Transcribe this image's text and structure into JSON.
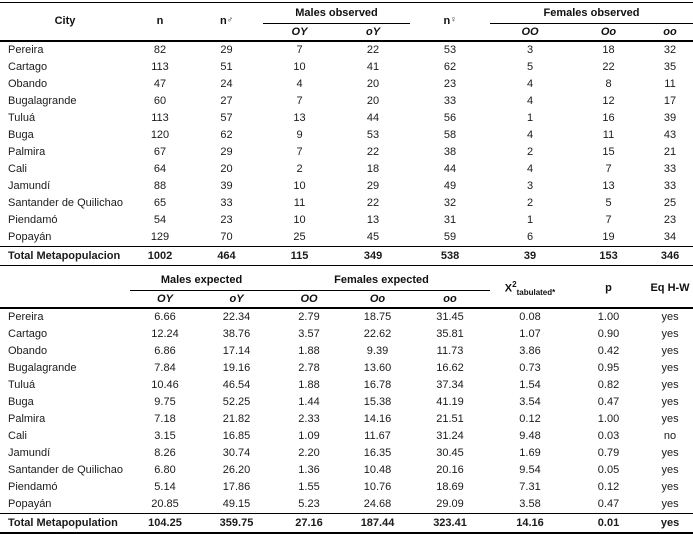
{
  "table1": {
    "headers": {
      "city": "City",
      "n": "n",
      "male_symbol": "♂",
      "female_symbol": "♀",
      "males_observed": "Males observed",
      "females_observed": "Females observed",
      "male_genotypes": [
        "OY",
        "oY"
      ],
      "female_genotypes": [
        "OO",
        "Oo",
        "oo"
      ]
    },
    "rows": [
      {
        "city": "Pereira",
        "values": [
          "82",
          "29",
          "7",
          "22",
          "53",
          "3",
          "18",
          "32"
        ]
      },
      {
        "city": "Cartago",
        "values": [
          "113",
          "51",
          "10",
          "41",
          "62",
          "5",
          "22",
          "35"
        ]
      },
      {
        "city": "Obando",
        "values": [
          "47",
          "24",
          "4",
          "20",
          "23",
          "4",
          "8",
          "11"
        ]
      },
      {
        "city": "Bugalagrande",
        "values": [
          "60",
          "27",
          "7",
          "20",
          "33",
          "4",
          "12",
          "17"
        ]
      },
      {
        "city": "Tuluá",
        "values": [
          "113",
          "57",
          "13",
          "44",
          "56",
          "1",
          "16",
          "39"
        ]
      },
      {
        "city": "Buga",
        "values": [
          "120",
          "62",
          "9",
          "53",
          "58",
          "4",
          "11",
          "43"
        ]
      },
      {
        "city": "Palmira",
        "values": [
          "67",
          "29",
          "7",
          "22",
          "38",
          "2",
          "15",
          "21"
        ]
      },
      {
        "city": "Cali",
        "values": [
          "64",
          "20",
          "2",
          "18",
          "44",
          "4",
          "7",
          "33"
        ]
      },
      {
        "city": "Jamundí",
        "values": [
          "88",
          "39",
          "10",
          "29",
          "49",
          "3",
          "13",
          "33"
        ]
      },
      {
        "city": "Santander de Quilichao",
        "values": [
          "65",
          "33",
          "11",
          "22",
          "32",
          "2",
          "5",
          "25"
        ]
      },
      {
        "city": "Piendamó",
        "values": [
          "54",
          "23",
          "10",
          "13",
          "31",
          "1",
          "7",
          "23"
        ]
      },
      {
        "city": "Popayán",
        "values": [
          "129",
          "70",
          "25",
          "45",
          "59",
          "6",
          "19",
          "34"
        ]
      }
    ],
    "total": {
      "city": "Total Metapopulacion",
      "values": [
        "1002",
        "464",
        "115",
        "349",
        "538",
        "39",
        "153",
        "346"
      ]
    }
  },
  "table2": {
    "headers": {
      "city": "",
      "males_expected": "Males expected",
      "females_expected": "Females expected",
      "male_genotypes": [
        "OY",
        "oY"
      ],
      "female_genotypes": [
        "OO",
        "Oo",
        "oo"
      ],
      "chi_base": "X",
      "chi_sup": "2",
      "chi_sub": "tabulated*",
      "p": "p",
      "eq_hw": "Eq H-W"
    },
    "rows": [
      {
        "city": "Pereira",
        "values": [
          "6.66",
          "22.34",
          "2.79",
          "18.75",
          "31.45",
          "0.08",
          "1.00",
          "yes"
        ]
      },
      {
        "city": "Cartago",
        "values": [
          "12.24",
          "38.76",
          "3.57",
          "22.62",
          "35.81",
          "1.07",
          "0.90",
          "yes"
        ]
      },
      {
        "city": "Obando",
        "values": [
          "6.86",
          "17.14",
          "1.88",
          "9.39",
          "11.73",
          "3.86",
          "0.42",
          "yes"
        ]
      },
      {
        "city": "Bugalagrande",
        "values": [
          "7.84",
          "19.16",
          "2.78",
          "13.60",
          "16.62",
          "0.73",
          "0.95",
          "yes"
        ]
      },
      {
        "city": "Tuluá",
        "values": [
          "10.46",
          "46.54",
          "1.88",
          "16.78",
          "37.34",
          "1.54",
          "0.82",
          "yes"
        ]
      },
      {
        "city": "Buga",
        "values": [
          "9.75",
          "52.25",
          "1.44",
          "15.38",
          "41.19",
          "3.54",
          "0.47",
          "yes"
        ]
      },
      {
        "city": "Palmira",
        "values": [
          "7.18",
          "21.82",
          "2.33",
          "14.16",
          "21.51",
          "0.12",
          "1.00",
          "yes"
        ]
      },
      {
        "city": "Cali",
        "values": [
          "3.15",
          "16.85",
          "1.09",
          "11.67",
          "31.24",
          "9.48",
          "0.03",
          "no"
        ]
      },
      {
        "city": "Jamundí",
        "values": [
          "8.26",
          "30.74",
          "2.20",
          "16.35",
          "30.45",
          "1.69",
          "0.79",
          "yes"
        ]
      },
      {
        "city": "Santander de Quilichao",
        "values": [
          "6.80",
          "26.20",
          "1.36",
          "10.48",
          "20.16",
          "9.54",
          "0.05",
          "yes"
        ]
      },
      {
        "city": "Piendamó",
        "values": [
          "5.14",
          "17.86",
          "1.55",
          "10.76",
          "18.69",
          "7.31",
          "0.12",
          "yes"
        ]
      },
      {
        "city": "Popayán",
        "values": [
          "20.85",
          "49.15",
          "5.23",
          "24.68",
          "29.09",
          "3.58",
          "0.47",
          "yes"
        ]
      }
    ],
    "total": {
      "city": "Total Metapopulation",
      "values": [
        "104.25",
        "359.75",
        "27.16",
        "187.44",
        "323.41",
        "14.16",
        "0.01",
        "yes"
      ]
    }
  }
}
